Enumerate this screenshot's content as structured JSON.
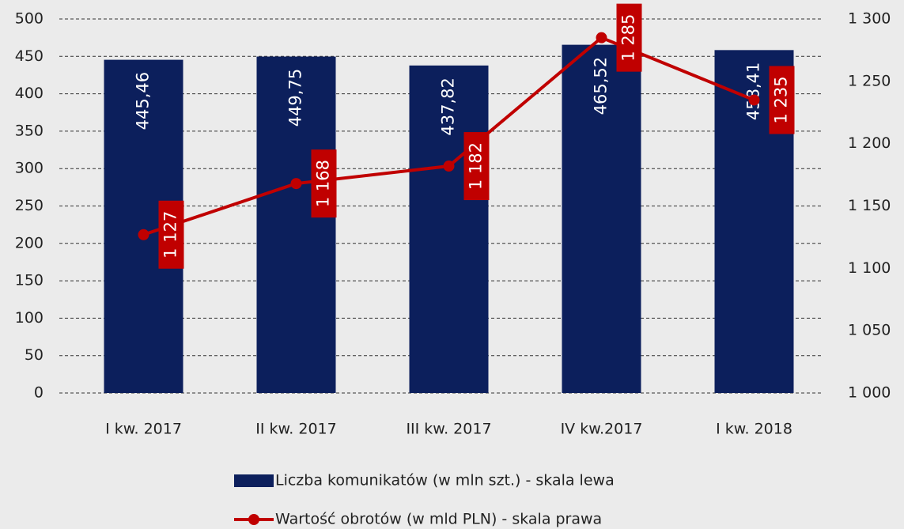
{
  "chart_data": {
    "type": "combo",
    "categories": [
      "I kw. 2017",
      "II kw. 2017",
      "III kw. 2017",
      "IV kw.2017",
      "I kw. 2018"
    ],
    "series": [
      {
        "name": "Liczba komunikatów (w mln szt.) - skala lewa",
        "type": "bar",
        "color": "#0c1f5c",
        "axis": "y",
        "values": [
          445.46,
          449.75,
          437.82,
          465.52,
          458.41
        ],
        "value_labels": [
          "445,46",
          "449,75",
          "437,82",
          "465,52",
          "458,41"
        ]
      },
      {
        "name": "Wartość obrotów (w mld PLN) - skala prawa",
        "type": "line",
        "color": "#c00000",
        "axis": "y2",
        "values": [
          1127,
          1168,
          1182,
          1285,
          1235
        ],
        "value_labels": [
          "1 127",
          "1 168",
          "1 182",
          "1 285",
          "1 235"
        ]
      }
    ],
    "ylim": [
      0,
      500
    ],
    "yticks": [
      0,
      50,
      100,
      150,
      200,
      250,
      300,
      350,
      400,
      450,
      500
    ],
    "y2lim": [
      1000,
      1300
    ],
    "y2ticks": [
      {
        "value": 1000,
        "label": "1 000"
      },
      {
        "value": 1050,
        "label": "1 050"
      },
      {
        "value": 1100,
        "label": "1 100"
      },
      {
        "value": 1150,
        "label": "1 150"
      },
      {
        "value": 1200,
        "label": "1 200"
      },
      {
        "value": 1250,
        "label": "1 250"
      },
      {
        "value": 1300,
        "label": "1 300"
      }
    ],
    "grid": true,
    "legend": "bottom"
  }
}
